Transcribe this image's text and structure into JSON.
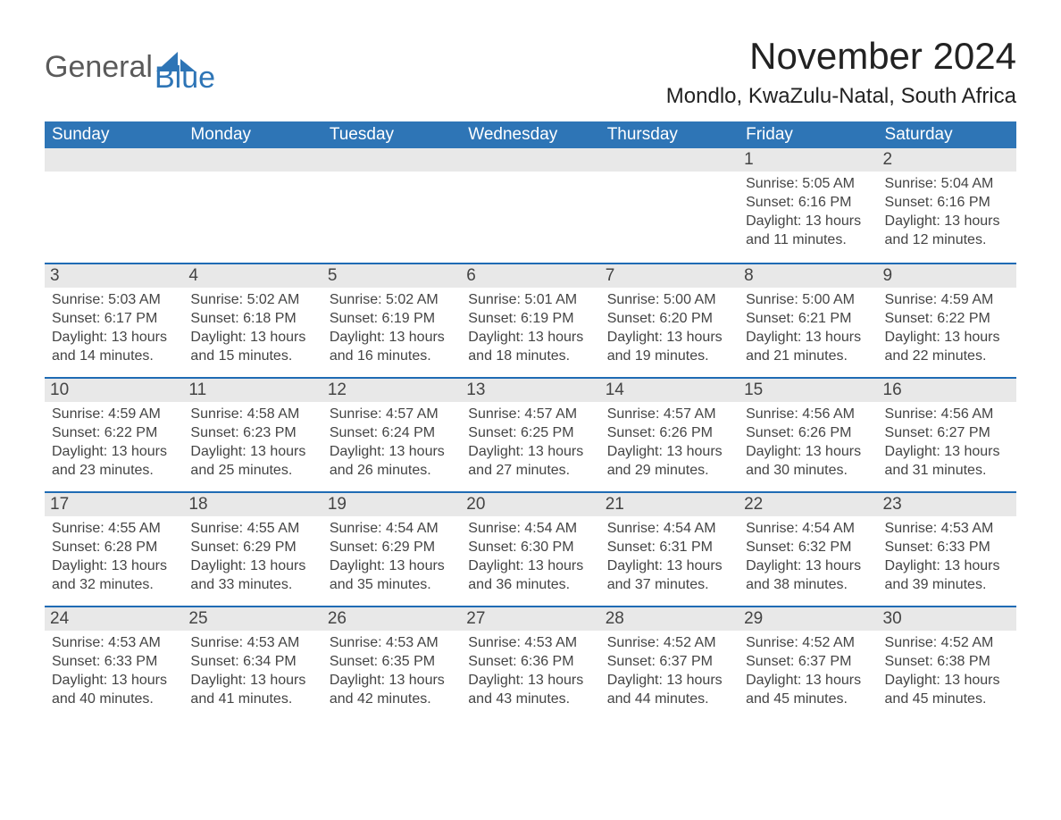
{
  "logo": {
    "word1": "General",
    "word2": "Blue"
  },
  "title": "November 2024",
  "location": "Mondlo, KwaZulu-Natal, South Africa",
  "colors": {
    "header_blue": "#2e75b6",
    "accent_blue": "#1f6bb4",
    "row_grey": "#e8e8e8",
    "text_dark": "#333333",
    "logo_grey": "#5a5a5a"
  },
  "weekdays": [
    "Sunday",
    "Monday",
    "Tuesday",
    "Wednesday",
    "Thursday",
    "Friday",
    "Saturday"
  ],
  "weeks": [
    [
      null,
      null,
      null,
      null,
      null,
      {
        "num": "1",
        "sunrise": "Sunrise: 5:05 AM",
        "sunset": "Sunset: 6:16 PM",
        "daylight": "Daylight: 13 hours and 11 minutes."
      },
      {
        "num": "2",
        "sunrise": "Sunrise: 5:04 AM",
        "sunset": "Sunset: 6:16 PM",
        "daylight": "Daylight: 13 hours and 12 minutes."
      }
    ],
    [
      {
        "num": "3",
        "sunrise": "Sunrise: 5:03 AM",
        "sunset": "Sunset: 6:17 PM",
        "daylight": "Daylight: 13 hours and 14 minutes."
      },
      {
        "num": "4",
        "sunrise": "Sunrise: 5:02 AM",
        "sunset": "Sunset: 6:18 PM",
        "daylight": "Daylight: 13 hours and 15 minutes."
      },
      {
        "num": "5",
        "sunrise": "Sunrise: 5:02 AM",
        "sunset": "Sunset: 6:19 PM",
        "daylight": "Daylight: 13 hours and 16 minutes."
      },
      {
        "num": "6",
        "sunrise": "Sunrise: 5:01 AM",
        "sunset": "Sunset: 6:19 PM",
        "daylight": "Daylight: 13 hours and 18 minutes."
      },
      {
        "num": "7",
        "sunrise": "Sunrise: 5:00 AM",
        "sunset": "Sunset: 6:20 PM",
        "daylight": "Daylight: 13 hours and 19 minutes."
      },
      {
        "num": "8",
        "sunrise": "Sunrise: 5:00 AM",
        "sunset": "Sunset: 6:21 PM",
        "daylight": "Daylight: 13 hours and 21 minutes."
      },
      {
        "num": "9",
        "sunrise": "Sunrise: 4:59 AM",
        "sunset": "Sunset: 6:22 PM",
        "daylight": "Daylight: 13 hours and 22 minutes."
      }
    ],
    [
      {
        "num": "10",
        "sunrise": "Sunrise: 4:59 AM",
        "sunset": "Sunset: 6:22 PM",
        "daylight": "Daylight: 13 hours and 23 minutes."
      },
      {
        "num": "11",
        "sunrise": "Sunrise: 4:58 AM",
        "sunset": "Sunset: 6:23 PM",
        "daylight": "Daylight: 13 hours and 25 minutes."
      },
      {
        "num": "12",
        "sunrise": "Sunrise: 4:57 AM",
        "sunset": "Sunset: 6:24 PM",
        "daylight": "Daylight: 13 hours and 26 minutes."
      },
      {
        "num": "13",
        "sunrise": "Sunrise: 4:57 AM",
        "sunset": "Sunset: 6:25 PM",
        "daylight": "Daylight: 13 hours and 27 minutes."
      },
      {
        "num": "14",
        "sunrise": "Sunrise: 4:57 AM",
        "sunset": "Sunset: 6:26 PM",
        "daylight": "Daylight: 13 hours and 29 minutes."
      },
      {
        "num": "15",
        "sunrise": "Sunrise: 4:56 AM",
        "sunset": "Sunset: 6:26 PM",
        "daylight": "Daylight: 13 hours and 30 minutes."
      },
      {
        "num": "16",
        "sunrise": "Sunrise: 4:56 AM",
        "sunset": "Sunset: 6:27 PM",
        "daylight": "Daylight: 13 hours and 31 minutes."
      }
    ],
    [
      {
        "num": "17",
        "sunrise": "Sunrise: 4:55 AM",
        "sunset": "Sunset: 6:28 PM",
        "daylight": "Daylight: 13 hours and 32 minutes."
      },
      {
        "num": "18",
        "sunrise": "Sunrise: 4:55 AM",
        "sunset": "Sunset: 6:29 PM",
        "daylight": "Daylight: 13 hours and 33 minutes."
      },
      {
        "num": "19",
        "sunrise": "Sunrise: 4:54 AM",
        "sunset": "Sunset: 6:29 PM",
        "daylight": "Daylight: 13 hours and 35 minutes."
      },
      {
        "num": "20",
        "sunrise": "Sunrise: 4:54 AM",
        "sunset": "Sunset: 6:30 PM",
        "daylight": "Daylight: 13 hours and 36 minutes."
      },
      {
        "num": "21",
        "sunrise": "Sunrise: 4:54 AM",
        "sunset": "Sunset: 6:31 PM",
        "daylight": "Daylight: 13 hours and 37 minutes."
      },
      {
        "num": "22",
        "sunrise": "Sunrise: 4:54 AM",
        "sunset": "Sunset: 6:32 PM",
        "daylight": "Daylight: 13 hours and 38 minutes."
      },
      {
        "num": "23",
        "sunrise": "Sunrise: 4:53 AM",
        "sunset": "Sunset: 6:33 PM",
        "daylight": "Daylight: 13 hours and 39 minutes."
      }
    ],
    [
      {
        "num": "24",
        "sunrise": "Sunrise: 4:53 AM",
        "sunset": "Sunset: 6:33 PM",
        "daylight": "Daylight: 13 hours and 40 minutes."
      },
      {
        "num": "25",
        "sunrise": "Sunrise: 4:53 AM",
        "sunset": "Sunset: 6:34 PM",
        "daylight": "Daylight: 13 hours and 41 minutes."
      },
      {
        "num": "26",
        "sunrise": "Sunrise: 4:53 AM",
        "sunset": "Sunset: 6:35 PM",
        "daylight": "Daylight: 13 hours and 42 minutes."
      },
      {
        "num": "27",
        "sunrise": "Sunrise: 4:53 AM",
        "sunset": "Sunset: 6:36 PM",
        "daylight": "Daylight: 13 hours and 43 minutes."
      },
      {
        "num": "28",
        "sunrise": "Sunrise: 4:52 AM",
        "sunset": "Sunset: 6:37 PM",
        "daylight": "Daylight: 13 hours and 44 minutes."
      },
      {
        "num": "29",
        "sunrise": "Sunrise: 4:52 AM",
        "sunset": "Sunset: 6:37 PM",
        "daylight": "Daylight: 13 hours and 45 minutes."
      },
      {
        "num": "30",
        "sunrise": "Sunrise: 4:52 AM",
        "sunset": "Sunset: 6:38 PM",
        "daylight": "Daylight: 13 hours and 45 minutes."
      }
    ]
  ]
}
